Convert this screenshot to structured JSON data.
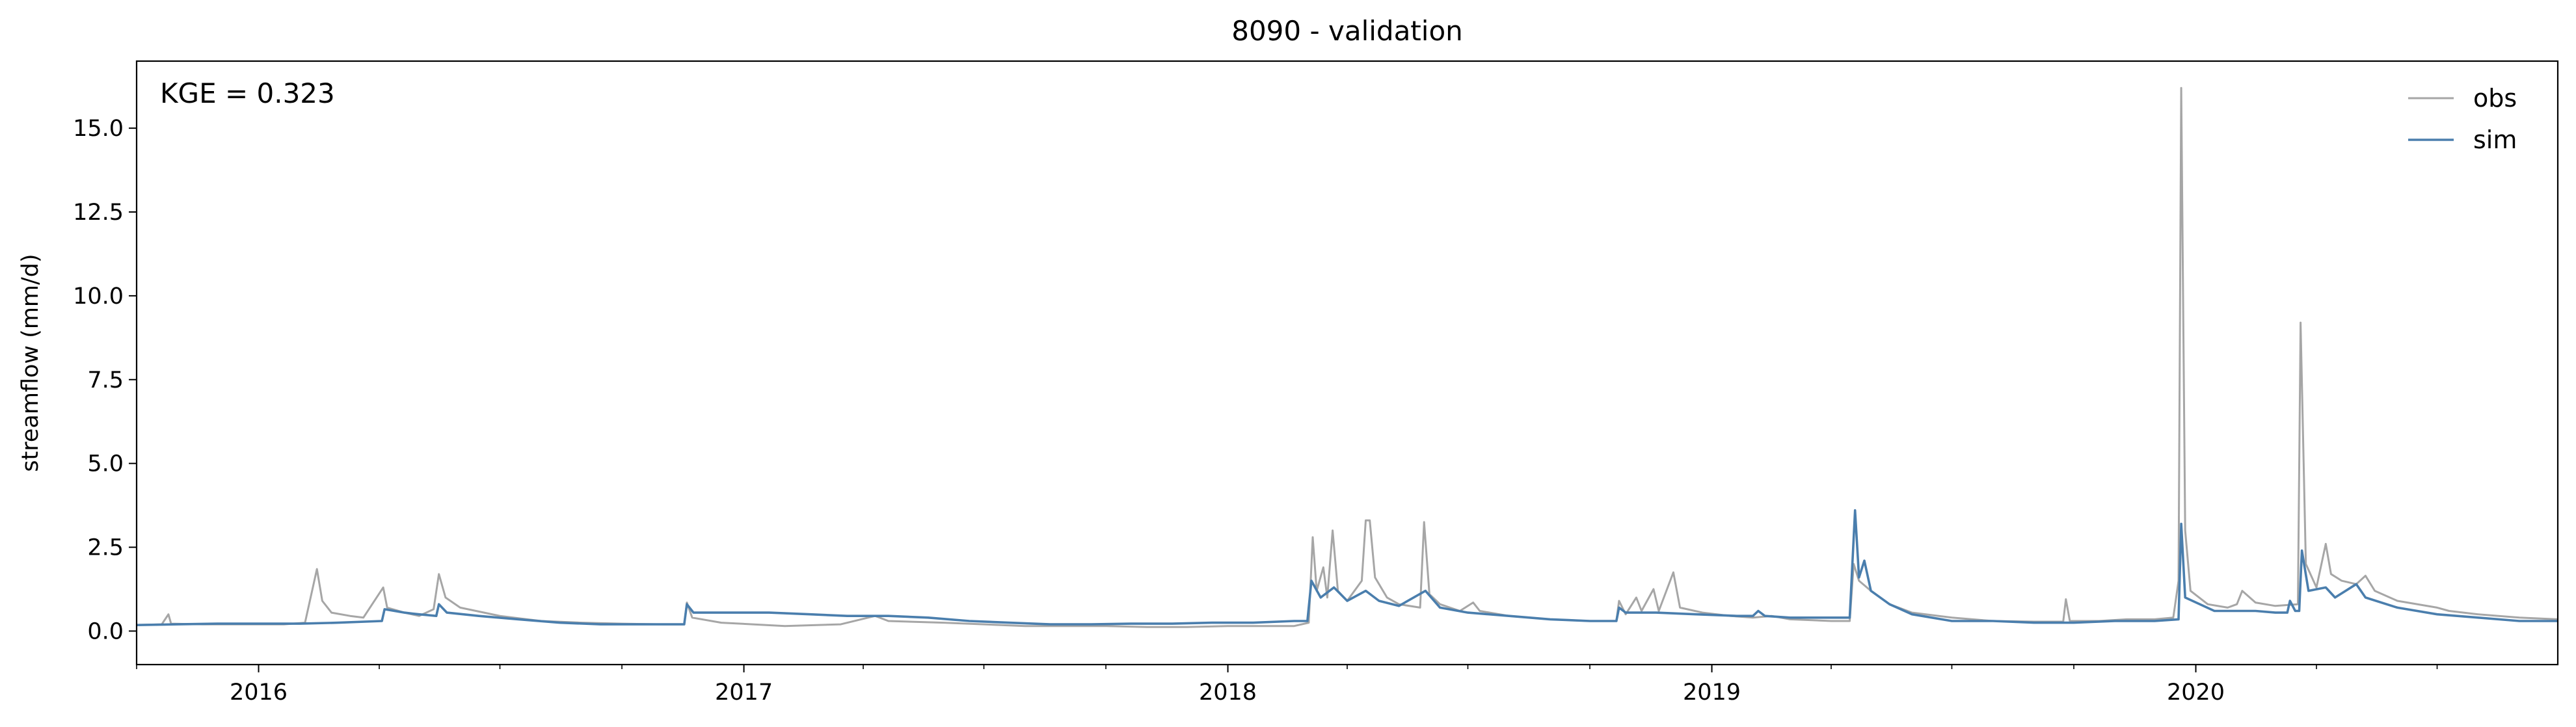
{
  "chart_data": {
    "type": "line",
    "title": "8090 - validation",
    "xlabel": "",
    "ylabel": "streamflow (mm/d)",
    "annotation": "KGE = 0.323",
    "xlim": [
      "2015-10-01",
      "2020-09-30"
    ],
    "ylim": [
      -1.0,
      17.0
    ],
    "grid": false,
    "legend_position": "top-right",
    "x_ticks": [
      "2016",
      "2017",
      "2018",
      "2019",
      "2020"
    ],
    "y_ticks": [
      "0.0",
      "2.5",
      "5.0",
      "7.5",
      "10.0",
      "12.5",
      "15.0"
    ],
    "series": [
      {
        "name": "obs",
        "color": "#a6a6a6",
        "points": [
          [
            "2015-10-01",
            0.18
          ],
          [
            "2015-10-20",
            0.2
          ],
          [
            "2015-10-25",
            0.5
          ],
          [
            "2015-10-27",
            0.22
          ],
          [
            "2015-11-20",
            0.2
          ],
          [
            "2015-12-20",
            0.2
          ],
          [
            "2016-01-20",
            0.2
          ],
          [
            "2016-02-05",
            0.25
          ],
          [
            "2016-02-14",
            1.85
          ],
          [
            "2016-02-18",
            0.9
          ],
          [
            "2016-02-25",
            0.55
          ],
          [
            "2016-03-10",
            0.45
          ],
          [
            "2016-03-20",
            0.4
          ],
          [
            "2016-04-04",
            1.3
          ],
          [
            "2016-04-07",
            0.7
          ],
          [
            "2016-04-20",
            0.55
          ],
          [
            "2016-05-01",
            0.45
          ],
          [
            "2016-05-12",
            0.65
          ],
          [
            "2016-05-16",
            1.7
          ],
          [
            "2016-05-21",
            1.0
          ],
          [
            "2016-06-01",
            0.7
          ],
          [
            "2016-07-01",
            0.45
          ],
          [
            "2016-08-01",
            0.3
          ],
          [
            "2016-09-01",
            0.25
          ],
          [
            "2016-10-01",
            0.22
          ],
          [
            "2016-11-01",
            0.2
          ],
          [
            "2016-11-17",
            0.2
          ],
          [
            "2016-11-19",
            0.85
          ],
          [
            "2016-11-23",
            0.4
          ],
          [
            "2016-12-15",
            0.25
          ],
          [
            "2017-02-01",
            0.15
          ],
          [
            "2017-03-15",
            0.2
          ],
          [
            "2017-04-10",
            0.45
          ],
          [
            "2017-04-20",
            0.3
          ],
          [
            "2017-06-01",
            0.25
          ],
          [
            "2017-07-01",
            0.2
          ],
          [
            "2017-08-01",
            0.15
          ],
          [
            "2017-09-01",
            0.15
          ],
          [
            "2017-10-01",
            0.15
          ],
          [
            "2017-11-01",
            0.12
          ],
          [
            "2017-12-01",
            0.12
          ],
          [
            "2018-01-01",
            0.15
          ],
          [
            "2018-02-01",
            0.15
          ],
          [
            "2018-02-20",
            0.15
          ],
          [
            "2018-03-03",
            0.25
          ],
          [
            "2018-03-06",
            2.8
          ],
          [
            "2018-03-09",
            1.2
          ],
          [
            "2018-03-14",
            1.9
          ],
          [
            "2018-03-17",
            1.0
          ],
          [
            "2018-03-21",
            3.0
          ],
          [
            "2018-03-25",
            1.2
          ],
          [
            "2018-04-01",
            0.9
          ],
          [
            "2018-04-12",
            1.5
          ],
          [
            "2018-04-15",
            3.3
          ],
          [
            "2018-04-18",
            3.3
          ],
          [
            "2018-04-22",
            1.6
          ],
          [
            "2018-05-01",
            1.0
          ],
          [
            "2018-05-10",
            0.8
          ],
          [
            "2018-05-26",
            0.7
          ],
          [
            "2018-05-29",
            3.25
          ],
          [
            "2018-06-02",
            1.1
          ],
          [
            "2018-06-10",
            0.8
          ],
          [
            "2018-06-25",
            0.6
          ],
          [
            "2018-07-05",
            0.85
          ],
          [
            "2018-07-10",
            0.6
          ],
          [
            "2018-08-01",
            0.45
          ],
          [
            "2018-09-01",
            0.35
          ],
          [
            "2018-10-01",
            0.3
          ],
          [
            "2018-10-21",
            0.3
          ],
          [
            "2018-10-23",
            0.9
          ],
          [
            "2018-10-28",
            0.5
          ],
          [
            "2018-11-05",
            1.0
          ],
          [
            "2018-11-09",
            0.6
          ],
          [
            "2018-11-18",
            1.25
          ],
          [
            "2018-11-22",
            0.6
          ],
          [
            "2018-12-03",
            1.75
          ],
          [
            "2018-12-08",
            0.7
          ],
          [
            "2018-12-25",
            0.55
          ],
          [
            "2019-01-15",
            0.45
          ],
          [
            "2019-02-01",
            0.4
          ],
          [
            "2019-02-15",
            0.45
          ],
          [
            "2019-03-01",
            0.35
          ],
          [
            "2019-04-01",
            0.3
          ],
          [
            "2019-04-15",
            0.3
          ],
          [
            "2019-04-18",
            2.0
          ],
          [
            "2019-04-22",
            1.5
          ],
          [
            "2019-05-01",
            1.2
          ],
          [
            "2019-05-15",
            0.8
          ],
          [
            "2019-06-01",
            0.55
          ],
          [
            "2019-07-01",
            0.4
          ],
          [
            "2019-08-01",
            0.3
          ],
          [
            "2019-09-01",
            0.28
          ],
          [
            "2019-09-23",
            0.28
          ],
          [
            "2019-09-25",
            0.95
          ],
          [
            "2019-09-28",
            0.3
          ],
          [
            "2019-10-20",
            0.3
          ],
          [
            "2019-11-10",
            0.35
          ],
          [
            "2019-12-01",
            0.35
          ],
          [
            "2019-12-15",
            0.4
          ],
          [
            "2019-12-19",
            1.5
          ],
          [
            "2019-12-21",
            16.2
          ],
          [
            "2019-12-24",
            3.0
          ],
          [
            "2019-12-28",
            1.2
          ],
          [
            "2020-01-10",
            0.8
          ],
          [
            "2020-01-25",
            0.7
          ],
          [
            "2020-02-01",
            0.8
          ],
          [
            "2020-02-05",
            1.2
          ],
          [
            "2020-02-15",
            0.85
          ],
          [
            "2020-03-01",
            0.75
          ],
          [
            "2020-03-18",
            0.8
          ],
          [
            "2020-03-20",
            9.2
          ],
          [
            "2020-03-24",
            2.0
          ],
          [
            "2020-04-01",
            1.3
          ],
          [
            "2020-04-08",
            2.6
          ],
          [
            "2020-04-12",
            1.7
          ],
          [
            "2020-04-20",
            1.5
          ],
          [
            "2020-05-01",
            1.4
          ],
          [
            "2020-05-08",
            1.65
          ],
          [
            "2020-05-15",
            1.2
          ],
          [
            "2020-06-01",
            0.9
          ],
          [
            "2020-07-01",
            0.7
          ],
          [
            "2020-07-10",
            0.6
          ],
          [
            "2020-08-01",
            0.5
          ],
          [
            "2020-09-01",
            0.4
          ],
          [
            "2020-09-30",
            0.35
          ]
        ]
      },
      {
        "name": "sim",
        "color": "#4a7ead",
        "points": [
          [
            "2015-10-01",
            0.18
          ],
          [
            "2015-11-01",
            0.2
          ],
          [
            "2015-12-01",
            0.22
          ],
          [
            "2016-01-01",
            0.22
          ],
          [
            "2016-02-01",
            0.22
          ],
          [
            "2016-03-01",
            0.25
          ],
          [
            "2016-04-03",
            0.3
          ],
          [
            "2016-04-05",
            0.65
          ],
          [
            "2016-04-20",
            0.55
          ],
          [
            "2016-05-01",
            0.5
          ],
          [
            "2016-05-14",
            0.45
          ],
          [
            "2016-05-16",
            0.8
          ],
          [
            "2016-05-22",
            0.55
          ],
          [
            "2016-06-15",
            0.45
          ],
          [
            "2016-07-15",
            0.35
          ],
          [
            "2016-08-15",
            0.25
          ],
          [
            "2016-09-15",
            0.2
          ],
          [
            "2016-10-15",
            0.2
          ],
          [
            "2016-11-17",
            0.2
          ],
          [
            "2016-11-19",
            0.8
          ],
          [
            "2016-11-24",
            0.55
          ],
          [
            "2016-12-20",
            0.55
          ],
          [
            "2017-01-20",
            0.55
          ],
          [
            "2017-02-20",
            0.5
          ],
          [
            "2017-03-20",
            0.45
          ],
          [
            "2017-04-20",
            0.45
          ],
          [
            "2017-05-20",
            0.4
          ],
          [
            "2017-06-20",
            0.3
          ],
          [
            "2017-07-20",
            0.25
          ],
          [
            "2017-08-20",
            0.2
          ],
          [
            "2017-09-20",
            0.2
          ],
          [
            "2017-10-20",
            0.22
          ],
          [
            "2017-11-20",
            0.22
          ],
          [
            "2017-12-20",
            0.25
          ],
          [
            "2018-01-20",
            0.25
          ],
          [
            "2018-02-20",
            0.3
          ],
          [
            "2018-03-02",
            0.3
          ],
          [
            "2018-03-05",
            1.5
          ],
          [
            "2018-03-12",
            1.0
          ],
          [
            "2018-03-22",
            1.3
          ],
          [
            "2018-04-01",
            0.9
          ],
          [
            "2018-04-15",
            1.2
          ],
          [
            "2018-04-25",
            0.9
          ],
          [
            "2018-05-10",
            0.75
          ],
          [
            "2018-05-30",
            1.2
          ],
          [
            "2018-06-10",
            0.7
          ],
          [
            "2018-07-01",
            0.55
          ],
          [
            "2018-08-01",
            0.45
          ],
          [
            "2018-09-01",
            0.35
          ],
          [
            "2018-10-01",
            0.3
          ],
          [
            "2018-10-21",
            0.3
          ],
          [
            "2018-10-23",
            0.7
          ],
          [
            "2018-10-28",
            0.55
          ],
          [
            "2018-11-20",
            0.55
          ],
          [
            "2018-12-20",
            0.5
          ],
          [
            "2019-01-20",
            0.45
          ],
          [
            "2019-02-01",
            0.45
          ],
          [
            "2019-02-05",
            0.6
          ],
          [
            "2019-02-10",
            0.45
          ],
          [
            "2019-03-01",
            0.4
          ],
          [
            "2019-04-01",
            0.4
          ],
          [
            "2019-04-15",
            0.4
          ],
          [
            "2019-04-19",
            3.6
          ],
          [
            "2019-04-22",
            1.6
          ],
          [
            "2019-04-26",
            2.1
          ],
          [
            "2019-05-01",
            1.2
          ],
          [
            "2019-05-15",
            0.8
          ],
          [
            "2019-06-01",
            0.5
          ],
          [
            "2019-07-01",
            0.3
          ],
          [
            "2019-08-01",
            0.3
          ],
          [
            "2019-09-01",
            0.25
          ],
          [
            "2019-10-01",
            0.25
          ],
          [
            "2019-11-01",
            0.3
          ],
          [
            "2019-12-01",
            0.3
          ],
          [
            "2019-12-19",
            0.35
          ],
          [
            "2019-12-21",
            3.2
          ],
          [
            "2019-12-24",
            1.0
          ],
          [
            "2020-01-15",
            0.6
          ],
          [
            "2020-02-15",
            0.6
          ],
          [
            "2020-03-01",
            0.55
          ],
          [
            "2020-03-10",
            0.55
          ],
          [
            "2020-03-12",
            0.9
          ],
          [
            "2020-03-16",
            0.6
          ],
          [
            "2020-03-19",
            0.6
          ],
          [
            "2020-03-21",
            2.4
          ],
          [
            "2020-03-26",
            1.2
          ],
          [
            "2020-04-08",
            1.3
          ],
          [
            "2020-04-15",
            1.0
          ],
          [
            "2020-05-01",
            1.4
          ],
          [
            "2020-05-08",
            1.0
          ],
          [
            "2020-06-01",
            0.7
          ],
          [
            "2020-07-01",
            0.5
          ],
          [
            "2020-08-01",
            0.4
          ],
          [
            "2020-09-01",
            0.3
          ],
          [
            "2020-09-30",
            0.3
          ]
        ]
      }
    ]
  }
}
